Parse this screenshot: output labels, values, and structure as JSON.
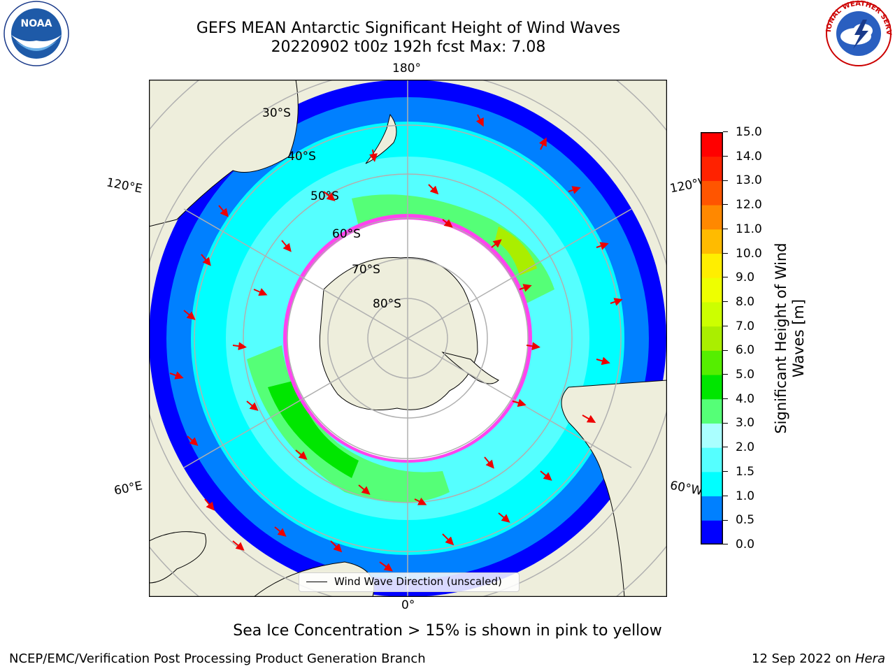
{
  "title": {
    "line1": "GEFS MEAN Antarctic Significant Height of Wind Waves",
    "line2": "20220902 t00z 192h fcst   Max: 7.08"
  },
  "logos": {
    "left": "noaa-logo",
    "right": "national-weather-service-logo",
    "left_text": "NOAA",
    "right_text": "NATIONAL WEATHER SERVICE"
  },
  "map": {
    "projection": "south-polar-stereographic",
    "longitude_labels": {
      "top": "180°",
      "bottom": "0°",
      "upper_left": "120°E",
      "upper_right": "120°W",
      "lower_left": "60°E",
      "lower_right": "60°W"
    },
    "latitude_labels": [
      "30°S",
      "40°S",
      "50°S",
      "60°S",
      "70°S",
      "80°S"
    ],
    "colors": {
      "land": "#eeeedc",
      "ocean_deep_blue": "#0000ff",
      "ocean_blue": "#0080ff",
      "ocean_cyan": "#00ffff",
      "ocean_light_cyan": "#55ffff",
      "ocean_pale_cyan": "#aaffff",
      "green_light": "#55ff77",
      "green": "#00e600",
      "sea_ice": "#ff44ee",
      "grid": "#b0b0b0",
      "arrow": "#ee0000"
    },
    "legend": {
      "label": "Wind Wave Direction (unscaled)"
    }
  },
  "colorbar": {
    "label": "Significant Height of Wind Waves [m]",
    "label_line1": "Significant Height of Wind",
    "label_line2": "Waves [m]",
    "ticks": [
      "0.0",
      "0.5",
      "1.0",
      "1.5",
      "2.0",
      "3.0",
      "4.0",
      "5.0",
      "6.0",
      "7.0",
      "8.0",
      "9.0",
      "10.0",
      "11.0",
      "12.0",
      "13.0",
      "14.0",
      "15.0"
    ],
    "colors": [
      "#0000ff",
      "#0080ff",
      "#00ffff",
      "#55ffff",
      "#aaffff",
      "#55ff77",
      "#00e600",
      "#55ee00",
      "#aaee00",
      "#ccff00",
      "#eeff00",
      "#ffee00",
      "#ffbb00",
      "#ff8800",
      "#ff5500",
      "#ff2200",
      "#ff0000"
    ]
  },
  "notes": {
    "sea_ice": "Sea Ice Concentration > 15% is shown in pink to yellow"
  },
  "footer": {
    "left": "NCEP/EMC/Verification Post Processing Product Generation Branch",
    "date": "12 Sep 2022 on ",
    "machine": "Hera"
  }
}
